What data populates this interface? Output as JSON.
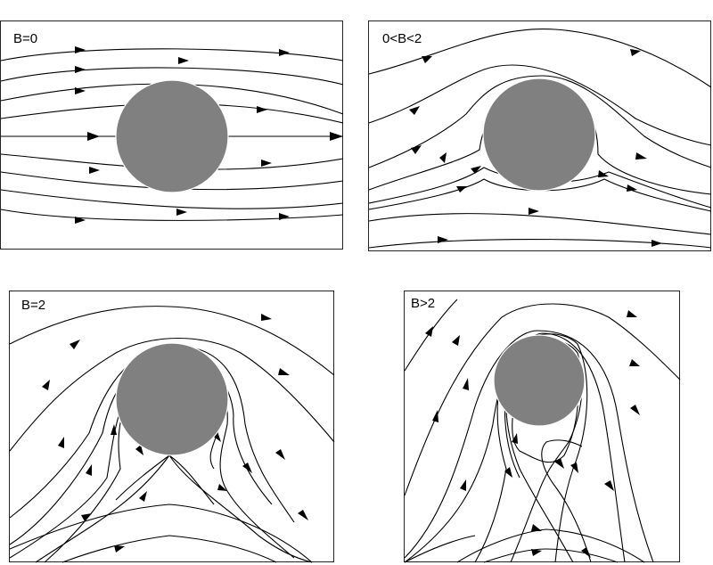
{
  "panels": [
    {
      "label": "B=0"
    },
    {
      "label": "0<B<2"
    },
    {
      "label": "B=2"
    },
    {
      "label": "B>2"
    }
  ],
  "colors": {
    "obstacle": "#808080",
    "streamline": "#000000",
    "background": "#ffffff"
  }
}
